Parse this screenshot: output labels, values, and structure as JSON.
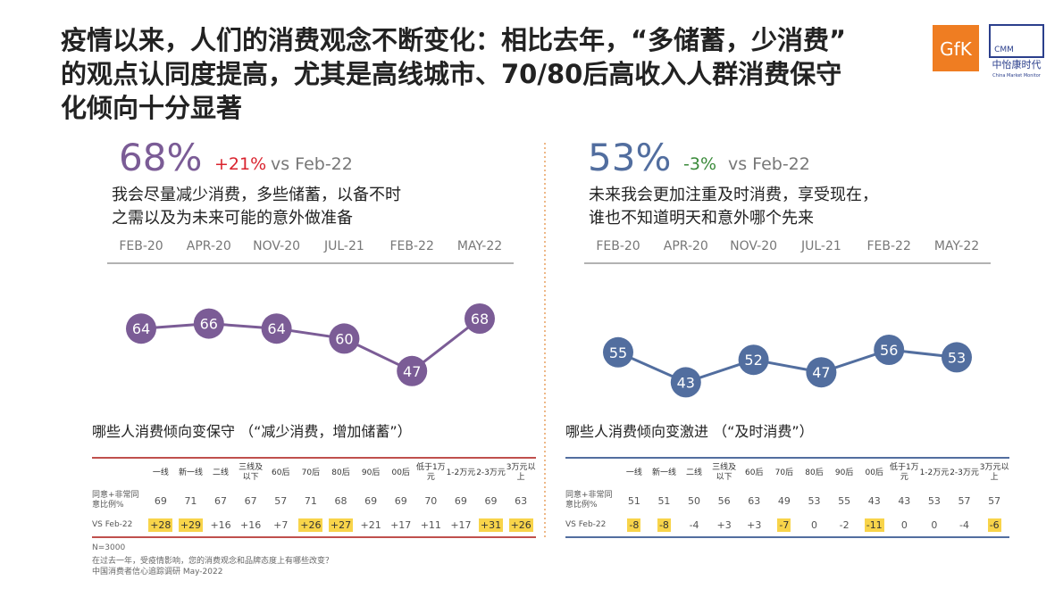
{
  "title": [
    "疫情以来，人们的消费观念不断变化：相比去年，“多储蓄，少消费”",
    "的观点认同度提高，尤其是高线城市、70/80后高收入人群消费保守",
    "化倾向十分显著"
  ],
  "logos": {
    "gfk": "GfK",
    "cmm": "CMM",
    "cmm_name": "中怡康时代",
    "cmm_en": "China Market Monitor"
  },
  "chart_data": [
    {
      "type": "line",
      "headline": "68%",
      "change": "+21%",
      "change_color": "#d9232e",
      "comparison": "vs Feb-22",
      "description": [
        "我会尽量减少消费，多些储蓄，以备不时",
        "之需以及为未来可能的意外做准备"
      ],
      "categories": [
        "FEB-20",
        "APR-20",
        "NOV-20",
        "JUL-21",
        "FEB-22",
        "MAY-22"
      ],
      "values": [
        64,
        66,
        64,
        60,
        47,
        68
      ],
      "color": "#7b5c96"
    },
    {
      "type": "line",
      "headline": "53%",
      "change": "-3%",
      "change_color": "#3a8a3a",
      "comparison": "vs Feb-22",
      "description": [
        "未来我会更加注重及时消费，享受现在，",
        "谁也不知道明天和意外哪个先来"
      ],
      "categories": [
        "FEB-20",
        "APR-20",
        "NOV-20",
        "JUL-21",
        "FEB-22",
        "MAY-22"
      ],
      "values": [
        55,
        43,
        52,
        47,
        56,
        53
      ],
      "color": "#526e9f"
    }
  ],
  "tables": [
    {
      "caption": "哪些人消费倾向变保守 （“减少消费，增加储蓄”）",
      "border_color": "#c0504d",
      "columns": [
        "一线",
        "新一线",
        "二线",
        "三线及以下",
        "60后",
        "70后",
        "80后",
        "90后",
        "00后",
        "低于1万元",
        "1-2万元",
        "2-3万元",
        "3万元以上"
      ],
      "rows": [
        {
          "label": "同意+非常同意比例%",
          "cells": [
            69,
            71,
            67,
            67,
            57,
            71,
            68,
            69,
            69,
            70,
            69,
            69,
            63
          ]
        },
        {
          "label": "VS Feb-22",
          "cells": [
            "+28",
            "+29",
            "+16",
            "+16",
            "+7",
            "+26",
            "+27",
            "+21",
            "+17",
            "+11",
            "+17",
            "+31",
            "+26"
          ],
          "highlighted": [
            0,
            1,
            5,
            6,
            11,
            12
          ]
        }
      ]
    },
    {
      "caption": "哪些人消费倾向变激进 （“及时消费”）",
      "border_color": "#526e9f",
      "columns": [
        "一线",
        "新一线",
        "二线",
        "三线及以下",
        "60后",
        "70后",
        "80后",
        "90后",
        "00后",
        "低于1万元",
        "1-2万元",
        "2-3万元",
        "3万元以上"
      ],
      "rows": [
        {
          "label": "同意+非常同意比例%",
          "cells": [
            51,
            51,
            50,
            56,
            63,
            49,
            53,
            55,
            43,
            43,
            53,
            57,
            57
          ]
        },
        {
          "label": "VS Feb-22",
          "cells": [
            "-8",
            "-8",
            "-4",
            "+3",
            "+3",
            "-7",
            "0",
            "-2",
            "-11",
            "0",
            "0",
            "-4",
            "-6"
          ],
          "highlighted": [
            0,
            1,
            5,
            8,
            12
          ]
        }
      ]
    }
  ],
  "footnotes": [
    "N=3000",
    "在过去一年，受疫情影响，您的消费观念和品牌态度上有哪些改变？",
    "中国消费者信心追踪调研 May-2022"
  ]
}
